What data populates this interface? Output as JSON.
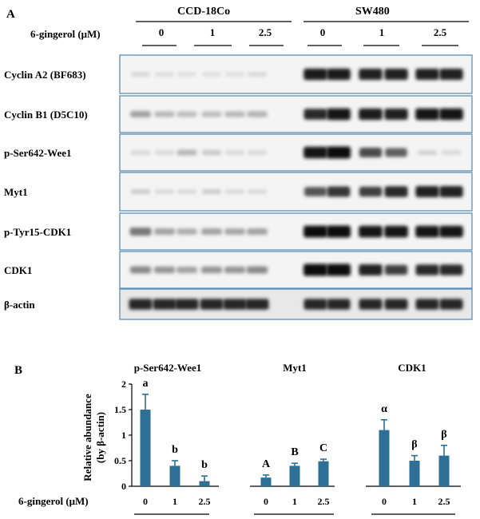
{
  "panel_a": {
    "panel_label": "A",
    "treatment_label": "6-gingerol (μM)",
    "cell_lines": [
      "CCD-18Co",
      "SW480"
    ],
    "doses": [
      "0",
      "1",
      "2.5",
      "0",
      "1",
      "2.5"
    ],
    "blots": [
      {
        "label": "Cyclin A2 (BF683)",
        "intensities": [
          0.06,
          0.03,
          0.02,
          0.02,
          0.02,
          0.05,
          0.92,
          0.92,
          0.9,
          0.9,
          0.9,
          0.9
        ]
      },
      {
        "label": "Cyclin B1 (D5C10)",
        "intensities": [
          0.3,
          0.2,
          0.18,
          0.18,
          0.2,
          0.22,
          0.85,
          0.95,
          0.92,
          0.9,
          0.95,
          0.95
        ]
      },
      {
        "label": "p-Ser642-Wee1",
        "intensities": [
          0.05,
          0.05,
          0.2,
          0.12,
          0.05,
          0.05,
          0.95,
          1.0,
          0.7,
          0.6,
          0.08,
          0.05
        ]
      },
      {
        "label": "Myt1",
        "intensities": [
          0.1,
          0.05,
          0.05,
          0.1,
          0.05,
          0.05,
          0.65,
          0.8,
          0.75,
          0.85,
          0.9,
          0.9
        ]
      },
      {
        "label": "p-Tyr15-CDK1",
        "intensities": [
          0.5,
          0.3,
          0.25,
          0.3,
          0.28,
          0.3,
          0.97,
          1.0,
          0.95,
          0.95,
          0.95,
          0.95
        ]
      },
      {
        "label": "CDK1",
        "intensities": [
          0.4,
          0.35,
          0.3,
          0.35,
          0.35,
          0.4,
          1.0,
          1.0,
          0.9,
          0.75,
          0.85,
          0.85
        ]
      },
      {
        "label": "β-actin",
        "intensities": [
          0.85,
          0.85,
          0.85,
          0.85,
          0.85,
          0.85,
          0.85,
          0.85,
          0.85,
          0.85,
          0.85,
          0.85
        ]
      }
    ]
  },
  "panel_b": {
    "panel_label": "B",
    "treatment_label": "6-gingerol (μM)",
    "bar_color": "#2e6f96",
    "chart_data": {
      "type": "bar",
      "ylabel": "Relative abundance (by β-actin)",
      "ylim": [
        0,
        2
      ],
      "yticks": [
        "0",
        "0.5",
        "1",
        "1.5",
        "2"
      ],
      "groups": [
        {
          "name": "p-Ser642-Wee1",
          "categories": [
            "0",
            "1",
            "2.5"
          ],
          "values": [
            1.5,
            0.4,
            0.1
          ],
          "errors": [
            0.3,
            0.1,
            0.1
          ],
          "letters": [
            "a",
            "b",
            "b"
          ]
        },
        {
          "name": "Myt1",
          "categories": [
            "0",
            "1",
            "2.5"
          ],
          "values": [
            0.17,
            0.4,
            0.49
          ],
          "errors": [
            0.05,
            0.05,
            0.04
          ],
          "letters": [
            "A",
            "B",
            "C"
          ]
        },
        {
          "name": "CDK1",
          "categories": [
            "0",
            "1",
            "2.5"
          ],
          "values": [
            1.1,
            0.5,
            0.6
          ],
          "errors": [
            0.2,
            0.1,
            0.2
          ],
          "letters": [
            "α",
            "β",
            "β"
          ]
        }
      ]
    }
  }
}
